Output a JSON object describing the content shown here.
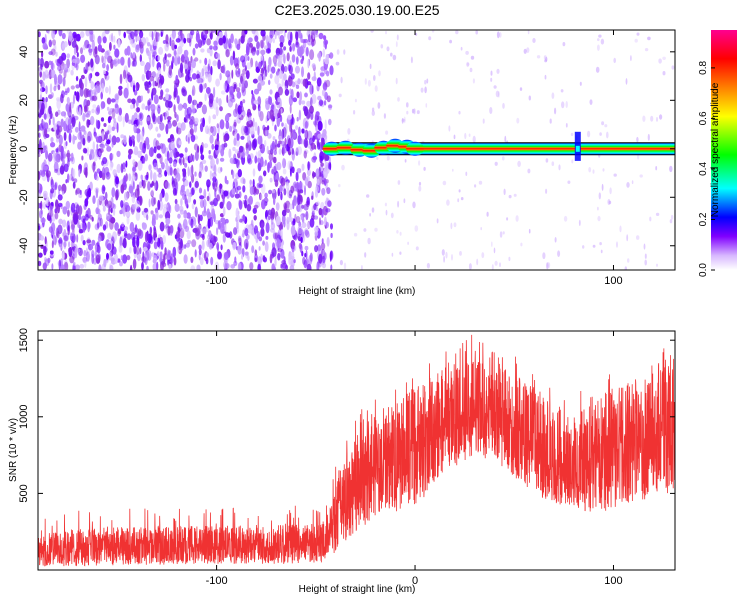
{
  "title": "C2E3.2025.030.19.00.E25",
  "chart_data": [
    {
      "type": "heatmap",
      "xlabel": "Height of straight line (km)",
      "ylabel": "Frequency (Hz)",
      "xlim": [
        -190,
        131
      ],
      "ylim": [
        -50,
        49
      ],
      "xticks": [
        -100,
        0,
        100
      ],
      "xtick_labels": [
        "-100",
        "",
        "100"
      ],
      "yticks": [
        -40,
        -20,
        0,
        20,
        40
      ],
      "ytick_labels": [
        "-40",
        "-20",
        "0",
        "20",
        "40"
      ],
      "colorbar": {
        "label": "Normalized spectral amplitude",
        "range": [
          0,
          0.95
        ],
        "ticks": [
          0.0,
          0.2,
          0.4,
          0.6,
          0.8
        ],
        "tick_labels": [
          "0.0",
          "0.2",
          "0.4",
          "0.6",
          "0.8"
        ],
        "colormap": [
          "#ffffff",
          "#c080ff",
          "#8000ff",
          "#0000ff",
          "#00ffff",
          "#00ff00",
          "#ffff00",
          "#ff8000",
          "#ff0000",
          "#ff0080"
        ]
      },
      "regions": [
        {
          "kind": "noise",
          "x": [
            -190,
            -42
          ],
          "level": 0.1
        },
        {
          "kind": "signal",
          "x": [
            -42,
            131
          ],
          "frequency": 0,
          "peak": 0.95
        },
        {
          "kind": "burst",
          "x": 82,
          "frequency_span": [
            -5,
            7
          ]
        }
      ]
    },
    {
      "type": "line",
      "xlabel": "Height of straight line (km)",
      "ylabel": "SNR (10 * v/v)",
      "xlim": [
        -190,
        131
      ],
      "ylim": [
        0,
        1560
      ],
      "xticks": [
        -100,
        0,
        100
      ],
      "xtick_labels": [
        "-100",
        "0",
        "100"
      ],
      "yticks": [
        500,
        1000,
        1500
      ],
      "ytick_labels": [
        "500",
        "1000",
        "1500"
      ],
      "color": "#f03232",
      "envelope": {
        "x": [
          -190,
          -150,
          -100,
          -60,
          -45,
          -38,
          -30,
          -20,
          -10,
          0,
          10,
          20,
          30,
          40,
          50,
          60,
          70,
          80,
          90,
          100,
          110,
          120,
          131
        ],
        "lower": [
          20,
          30,
          40,
          40,
          50,
          150,
          250,
          330,
          380,
          430,
          520,
          650,
          760,
          700,
          600,
          500,
          430,
          400,
          360,
          400,
          450,
          470,
          500
        ],
        "upper": [
          260,
          280,
          290,
          300,
          320,
          680,
          900,
          1020,
          1100,
          1190,
          1280,
          1350,
          1440,
          1360,
          1290,
          1200,
          1100,
          1020,
          1120,
          1190,
          1230,
          1330,
          1420
        ],
        "median": [
          130,
          140,
          150,
          160,
          170,
          420,
          560,
          680,
          720,
          780,
          860,
          950,
          1020,
          960,
          900,
          820,
          720,
          640,
          700,
          760,
          800,
          880,
          900
        ]
      }
    }
  ]
}
